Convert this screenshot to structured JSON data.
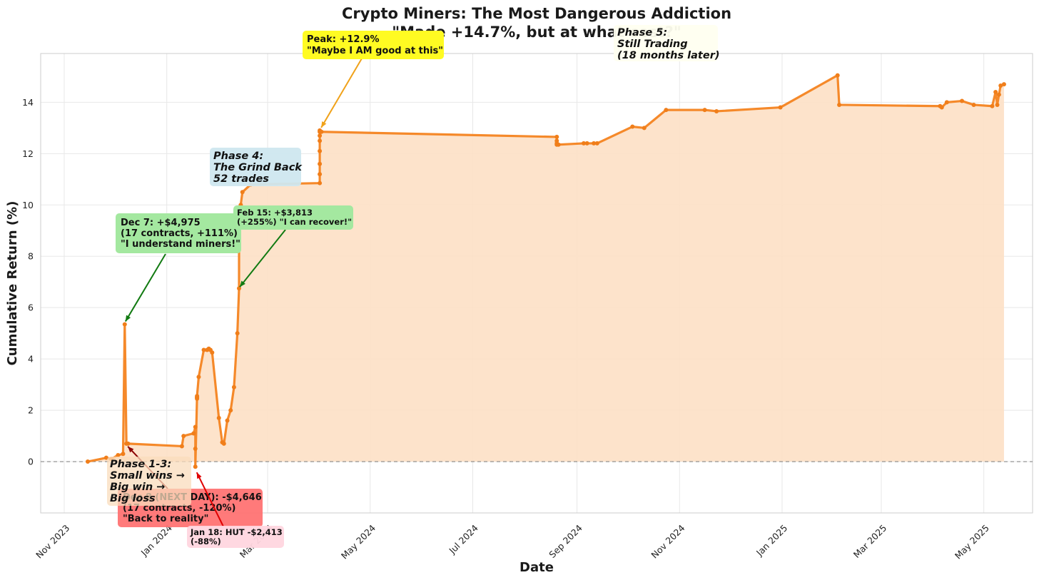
{
  "chart_data": {
    "type": "line",
    "title": "Crypto Miners: The Most Dangerous Addiction",
    "subtitle": "\"Made +14.7%, but at what cost?\"",
    "xlabel": "Date",
    "ylabel": "Cumulative Return (%)",
    "xlim": [
      "2023-10-18",
      "2025-05-30"
    ],
    "ylim": [
      -2.0,
      15.9
    ],
    "grid": true,
    "x_ticks": [
      "2023-11-01",
      "2024-01-01",
      "2024-03-01",
      "2024-05-01",
      "2024-07-01",
      "2024-09-01",
      "2024-11-01",
      "2025-01-01",
      "2025-03-01",
      "2025-05-01"
    ],
    "x_tick_labels": [
      "Nov 2023",
      "Jan 2024",
      "Mar 2024",
      "May 2024",
      "Jul 2024",
      "Sep 2024",
      "Nov 2024",
      "Jan 2025",
      "Mar 2025",
      "May 2025"
    ],
    "y_ticks": [
      0,
      2,
      4,
      6,
      8,
      10,
      12,
      14
    ],
    "y_tick_labels": [
      "0",
      "2",
      "4",
      "6",
      "8",
      "10",
      "12",
      "14"
    ],
    "reference_line": {
      "y": 0,
      "style": "dashed",
      "color": "#888888"
    },
    "line_color": "#f5892a",
    "fill_color": "#fde0c5",
    "series": [
      {
        "x": [
          "2023-11-15",
          "2023-11-26",
          "2023-11-29",
          "2023-12-03",
          "2023-12-06",
          "2023-12-07",
          "2023-12-08",
          "2023-12-09",
          "2024-01-10",
          "2024-01-11",
          "2024-01-17",
          "2024-01-18",
          "2024-01-18",
          "2024-01-18",
          "2024-01-19",
          "2024-01-19",
          "2024-01-19",
          "2024-01-19",
          "2024-01-20",
          "2024-01-23",
          "2024-01-25",
          "2024-01-26",
          "2024-01-27",
          "2024-01-28",
          "2024-02-01",
          "2024-02-03",
          "2024-02-04",
          "2024-02-06",
          "2024-02-08",
          "2024-02-10",
          "2024-02-12",
          "2024-02-13",
          "2024-02-13",
          "2024-02-14",
          "2024-02-14",
          "2024-02-15",
          "2024-02-20",
          "2024-04-01",
          "2024-04-01",
          "2024-04-01",
          "2024-04-01",
          "2024-04-01",
          "2024-04-01",
          "2024-04-01",
          "2024-04-01",
          "2024-04-02",
          "2024-08-20",
          "2024-08-20",
          "2024-08-20",
          "2024-08-20",
          "2024-08-21",
          "2024-09-05",
          "2024-09-07",
          "2024-09-11",
          "2024-09-13",
          "2024-10-04",
          "2024-10-11",
          "2024-10-24",
          "2024-11-16",
          "2024-11-23",
          "2024-12-31",
          "2025-02-03",
          "2025-02-04",
          "2025-04-05",
          "2025-04-06",
          "2025-04-09",
          "2025-04-18",
          "2025-04-25",
          "2025-05-06",
          "2025-05-08",
          "2025-05-09",
          "2025-05-10",
          "2025-05-11",
          "2025-05-13"
        ],
        "y": [
          0.0,
          0.15,
          0.1,
          0.25,
          0.3,
          5.35,
          0.7,
          0.7,
          0.6,
          1.0,
          1.1,
          1.35,
          0.5,
          -0.2,
          2.5,
          2.45,
          2.5,
          2.55,
          3.3,
          4.35,
          4.35,
          4.4,
          4.35,
          4.25,
          1.7,
          0.75,
          0.7,
          1.6,
          2.0,
          2.9,
          5.0,
          6.75,
          9.2,
          9.35,
          10.0,
          10.5,
          10.8,
          10.85,
          11.2,
          11.6,
          12.1,
          12.5,
          12.7,
          12.9,
          12.85,
          12.85,
          12.65,
          12.5,
          12.4,
          12.35,
          12.35,
          12.4,
          12.4,
          12.4,
          12.4,
          13.05,
          13.0,
          13.7,
          13.7,
          13.65,
          13.8,
          15.05,
          13.9,
          13.85,
          13.8,
          14.0,
          14.05,
          13.9,
          13.85,
          14.4,
          13.9,
          14.3,
          14.65,
          14.7
        ]
      }
    ],
    "annotations": [
      {
        "id": "peak",
        "text": [
          "Peak: +12.9%",
          "\"Maybe I AM good at this\""
        ],
        "color": "#fffb22",
        "arrow_color": "#f0a21a"
      },
      {
        "id": "dec7",
        "text": [
          "Dec 7: +$4,975",
          "(17 contracts, +111%)",
          "\"I understand miners!\""
        ],
        "color": "#a4e8a0",
        "arrow_color": "#117a11"
      },
      {
        "id": "feb15",
        "text": [
          "Feb 15: +$3,813",
          "(+255%) \"I can recover!\""
        ],
        "color": "#a4e8a0",
        "arrow_color": "#117a11"
      },
      {
        "id": "nextday",
        "text": [
          "Dec 8 (NEXT DAY): -$4,646",
          "(17 contracts, -120%)",
          "\"Back to reality\""
        ],
        "color": "#ff7373",
        "arrow_color": "#8b0000"
      },
      {
        "id": "jan18",
        "text": [
          "Jan 18: HUT -$2,413",
          "(-88%)"
        ],
        "color": "#ffd6df",
        "arrow_color": "#e00000",
        "text_color": "#e00000"
      }
    ],
    "phases": [
      {
        "id": "p13",
        "text": [
          "Phase 1-3:",
          "Small wins →",
          "Big win →",
          "Big loss"
        ],
        "color": "#f9dcbc"
      },
      {
        "id": "p4",
        "text": [
          "Phase 4:",
          "The Grind Back",
          "52 trades"
        ],
        "color": "#cfe7ef"
      },
      {
        "id": "p5",
        "text": [
          "Phase 5:",
          "Still Trading",
          "(18 months later)"
        ],
        "color": "#fffff0"
      }
    ]
  }
}
